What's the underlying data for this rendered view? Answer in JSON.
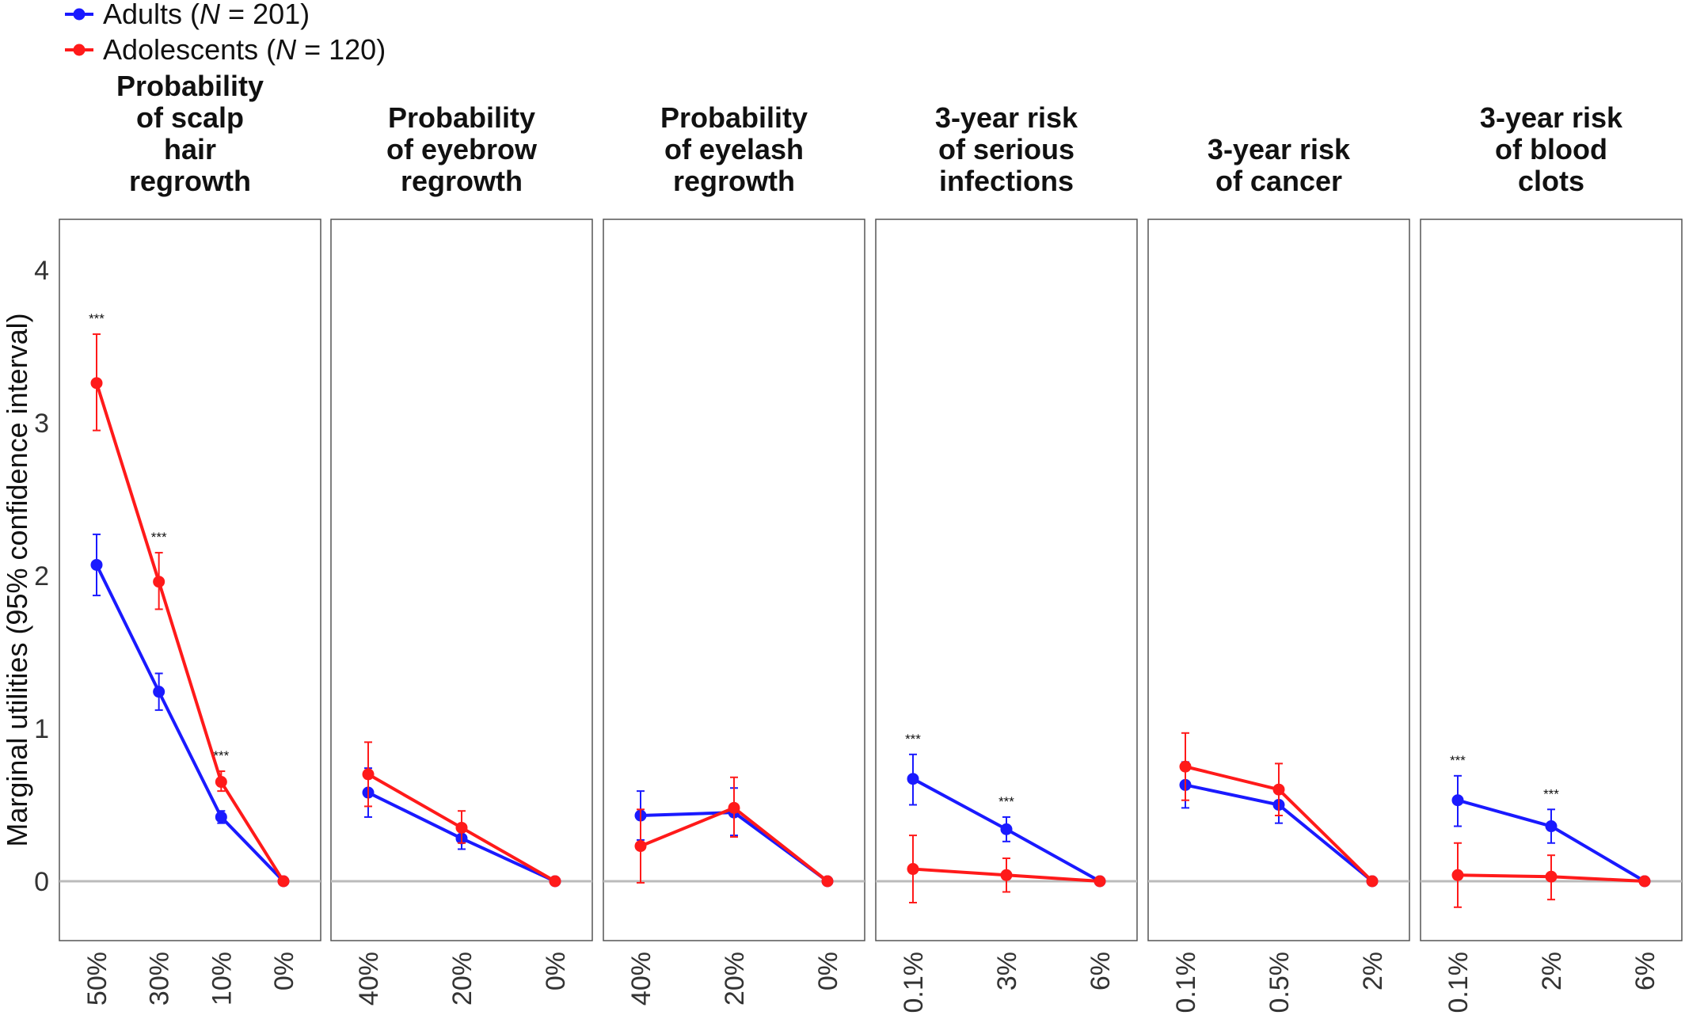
{
  "chart_data": {
    "type": "line",
    "ylabel": "Marginal utilities (95% confidence interval)",
    "ylim": [
      -0.4,
      4.3
    ],
    "yticks": [
      "0",
      "1",
      "2",
      "3",
      "4"
    ],
    "legend": {
      "placement": "top-left",
      "items": [
        {
          "name": "Adults",
          "n_text": "N",
          "count": " = 201",
          "color": "#1a1aff"
        },
        {
          "name": "Adolescents",
          "n_text": "N",
          "count": " = 120",
          "color": "#ff1a1a"
        }
      ]
    },
    "significance_label": "***",
    "grid": false,
    "panels": [
      {
        "title": [
          "Probability",
          "of scalp",
          "hair",
          "regrowth"
        ],
        "categories": [
          "50%",
          "30%",
          "10%",
          "0%"
        ],
        "series": [
          {
            "name": "Adults",
            "color": "#1a1aff",
            "values": [
              2.07,
              1.24,
              0.42,
              0.0
            ],
            "lower": [
              1.87,
              1.12,
              0.38,
              0.0
            ],
            "upper": [
              2.27,
              1.36,
              0.46,
              0.0
            ]
          },
          {
            "name": "Adolescents",
            "color": "#ff1a1a",
            "values": [
              3.26,
              1.96,
              0.65,
              0.0
            ],
            "lower": [
              2.95,
              1.78,
              0.59,
              0.0
            ],
            "upper": [
              3.58,
              2.15,
              0.72,
              0.0
            ]
          }
        ],
        "significant": [
          true,
          true,
          true,
          false
        ]
      },
      {
        "title": [
          "Probability",
          "of eyebrow",
          "regrowth"
        ],
        "categories": [
          "40%",
          "20%",
          "0%"
        ],
        "series": [
          {
            "name": "Adults",
            "color": "#1a1aff",
            "values": [
              0.58,
              0.28,
              0.0
            ],
            "lower": [
              0.42,
              0.21,
              0.0
            ],
            "upper": [
              0.74,
              0.35,
              0.0
            ]
          },
          {
            "name": "Adolescents",
            "color": "#ff1a1a",
            "values": [
              0.7,
              0.35,
              0.0
            ],
            "lower": [
              0.49,
              0.25,
              0.0
            ],
            "upper": [
              0.91,
              0.46,
              0.0
            ]
          }
        ],
        "significant": [
          false,
          false,
          false
        ]
      },
      {
        "title": [
          "Probability",
          "of eyelash",
          "regrowth"
        ],
        "categories": [
          "40%",
          "20%",
          "0%"
        ],
        "series": [
          {
            "name": "Adults",
            "color": "#1a1aff",
            "values": [
              0.43,
              0.45,
              0.0
            ],
            "lower": [
              0.27,
              0.3,
              0.0
            ],
            "upper": [
              0.59,
              0.61,
              0.0
            ]
          },
          {
            "name": "Adolescents",
            "color": "#ff1a1a",
            "values": [
              0.23,
              0.48,
              0.0
            ],
            "lower": [
              -0.01,
              0.29,
              0.0
            ],
            "upper": [
              0.47,
              0.68,
              0.0
            ]
          }
        ],
        "significant": [
          false,
          false,
          false
        ]
      },
      {
        "title": [
          "3-year risk",
          "of serious",
          "infections"
        ],
        "categories": [
          "0.1%",
          "3%",
          "6%"
        ],
        "series": [
          {
            "name": "Adults",
            "color": "#1a1aff",
            "values": [
              0.67,
              0.34,
              0.0
            ],
            "lower": [
              0.5,
              0.26,
              0.0
            ],
            "upper": [
              0.83,
              0.42,
              0.0
            ]
          },
          {
            "name": "Adolescents",
            "color": "#ff1a1a",
            "values": [
              0.08,
              0.04,
              0.0
            ],
            "lower": [
              -0.14,
              -0.07,
              0.0
            ],
            "upper": [
              0.3,
              0.15,
              0.0
            ]
          }
        ],
        "significant": [
          true,
          true,
          false
        ]
      },
      {
        "title": [
          "3-year risk",
          "of cancer"
        ],
        "categories": [
          "0.1%",
          "0.5%",
          "2%"
        ],
        "series": [
          {
            "name": "Adults",
            "color": "#1a1aff",
            "values": [
              0.63,
              0.5,
              0.0
            ],
            "lower": [
              0.48,
              0.38,
              0.0
            ],
            "upper": [
              0.78,
              0.62,
              0.0
            ]
          },
          {
            "name": "Adolescents",
            "color": "#ff1a1a",
            "values": [
              0.75,
              0.6,
              0.0
            ],
            "lower": [
              0.53,
              0.43,
              0.0
            ],
            "upper": [
              0.97,
              0.77,
              0.0
            ]
          }
        ],
        "significant": [
          false,
          false,
          false
        ]
      },
      {
        "title": [
          "3-year risk",
          "of blood",
          "clots"
        ],
        "categories": [
          "0.1%",
          "2%",
          "6%"
        ],
        "series": [
          {
            "name": "Adults",
            "color": "#1a1aff",
            "values": [
              0.53,
              0.36,
              0.0
            ],
            "lower": [
              0.36,
              0.25,
              0.0
            ],
            "upper": [
              0.69,
              0.47,
              0.0
            ]
          },
          {
            "name": "Adolescents",
            "color": "#ff1a1a",
            "values": [
              0.04,
              0.03,
              0.0
            ],
            "lower": [
              -0.17,
              -0.12,
              0.0
            ],
            "upper": [
              0.25,
              0.17,
              0.0
            ]
          }
        ],
        "significant": [
          true,
          true,
          false
        ]
      }
    ]
  }
}
